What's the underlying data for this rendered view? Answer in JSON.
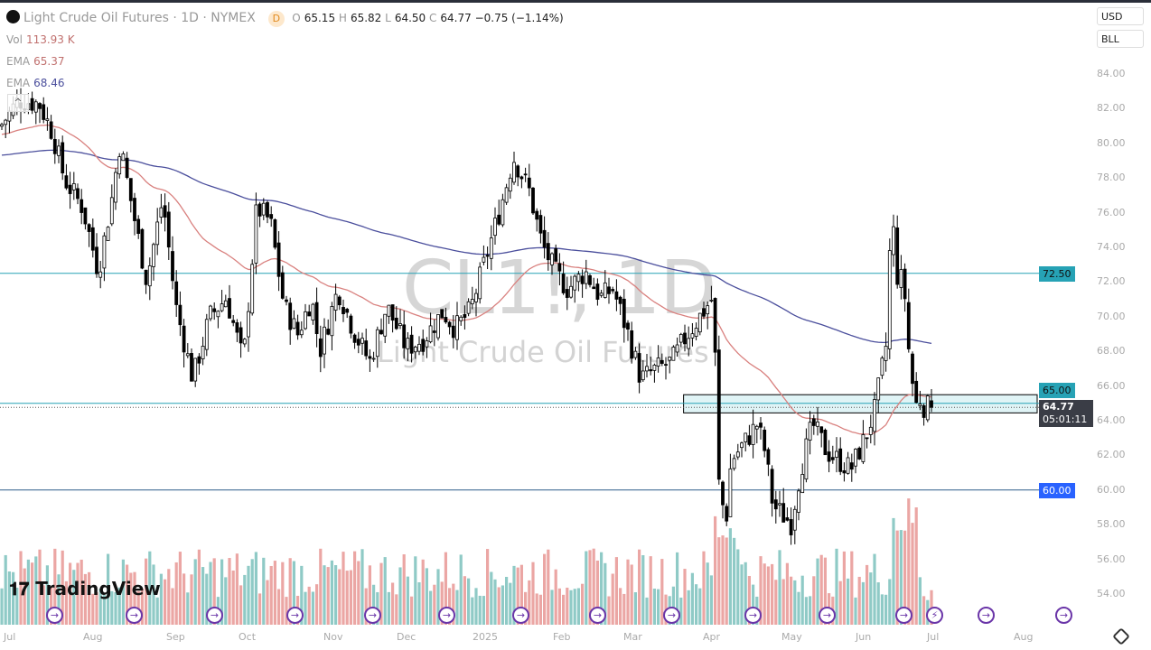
{
  "header": {
    "symbol_name": "Light Crude Oil Futures · 1D · NYMEX",
    "interval_badge": "D",
    "open_label": "O",
    "open": "65.15",
    "high_label": "H",
    "high": "65.82",
    "low_label": "L",
    "low": "64.50",
    "close_label": "C",
    "close": "64.77",
    "change": "−0.75 (−1.14%)"
  },
  "indicators": [
    {
      "label": "Vol",
      "value": "113.93 K",
      "color": "#c0706e"
    },
    {
      "label": "EMA",
      "value": "65.37",
      "color": "#c0706e"
    },
    {
      "label": "EMA",
      "value": "68.46",
      "color": "#4a4e9c"
    }
  ],
  "currency": "USD",
  "unit": "BLL",
  "watermark": {
    "symbol": "CL1!, 1D",
    "name": "Light Crude Oil Futures"
  },
  "price_labels": {
    "level_7250": "72.50",
    "level_6500": "65.00",
    "last_price": "64.77",
    "countdown": "05:01:11",
    "level_6000": "60.00"
  },
  "logo": "TradingView",
  "colors": {
    "up": "#ffffff",
    "down": "#000000",
    "ema_fast": "#d9817f",
    "ema_slow": "#4a4e9c",
    "level_line": "#26a2b5",
    "support_line": "#2962ff",
    "vol_up": "#8fcac6",
    "vol_down": "#eba6a4",
    "zone_fill": "#e0f4f6"
  },
  "chart_data": {
    "type": "candlestick",
    "title": "",
    "ylim": [
      53,
      85
    ],
    "y_ticks": [
      "84.00",
      "82.00",
      "80.00",
      "78.00",
      "76.00",
      "74.00",
      "72.00",
      "70.00",
      "68.00",
      "66.00",
      "64.00",
      "62.00",
      "60.00",
      "58.00",
      "56.00",
      "54.00"
    ],
    "x_ticks": [
      "Jul",
      "Aug",
      "Sep",
      "Oct",
      "Nov",
      "Dec",
      "2025",
      "Feb",
      "Mar",
      "Apr",
      "May",
      "Jun",
      "Jul",
      "Aug"
    ],
    "horizontal_levels": [
      72.5,
      65.0,
      60.0
    ],
    "zone": {
      "from": "2025-03-22",
      "top": 65.5,
      "bottom": 64.45
    },
    "close_path": [
      [
        "2024-06-27",
        81.0
      ],
      [
        "2024-07-04",
        82.5
      ],
      [
        "2024-07-12",
        82.3
      ],
      [
        "2024-07-17",
        80.7
      ],
      [
        "2024-07-22",
        77.9
      ],
      [
        "2024-07-29",
        76.3
      ],
      [
        "2024-08-04",
        72.6
      ],
      [
        "2024-08-09",
        76.8
      ],
      [
        "2024-08-12",
        80.0
      ],
      [
        "2024-08-17",
        76.0
      ],
      [
        "2024-08-22",
        72.1
      ],
      [
        "2024-08-28",
        76.8
      ],
      [
        "2024-09-02",
        70.6
      ],
      [
        "2024-09-09",
        66.4
      ],
      [
        "2024-09-16",
        70.0
      ],
      [
        "2024-09-23",
        71.1
      ],
      [
        "2024-09-30",
        67.4
      ],
      [
        "2024-10-05",
        76.3
      ],
      [
        "2024-10-10",
        75.5
      ],
      [
        "2024-10-15",
        70.6
      ],
      [
        "2024-10-20",
        69.0
      ],
      [
        "2024-10-25",
        71.1
      ],
      [
        "2024-10-28",
        68.0
      ],
      [
        "2024-11-04",
        71.6
      ],
      [
        "2024-11-11",
        69.0
      ],
      [
        "2024-11-17",
        67.4
      ],
      [
        "2024-11-24",
        70.6
      ],
      [
        "2024-12-02",
        68.2
      ],
      [
        "2024-12-09",
        68.7
      ],
      [
        "2024-12-17",
        70.3
      ],
      [
        "2024-12-22",
        69.3
      ],
      [
        "2024-12-28",
        70.3
      ],
      [
        "2025-01-04",
        73.7
      ],
      [
        "2025-01-09",
        76.3
      ],
      [
        "2025-01-14",
        79.2
      ],
      [
        "2025-01-20",
        77.3
      ],
      [
        "2025-01-25",
        74.2
      ],
      [
        "2025-01-30",
        72.6
      ],
      [
        "2025-02-04",
        71.6
      ],
      [
        "2025-02-11",
        72.6
      ],
      [
        "2025-02-17",
        71.1
      ],
      [
        "2025-02-22",
        71.6
      ],
      [
        "2025-02-28",
        69.0
      ],
      [
        "2025-03-05",
        66.4
      ],
      [
        "2025-03-10",
        66.9
      ],
      [
        "2025-03-17",
        67.4
      ],
      [
        "2025-03-22",
        68.7
      ],
      [
        "2025-03-27",
        69.8
      ],
      [
        "2025-04-02",
        71.1
      ],
      [
        "2025-04-03",
        67.4
      ],
      [
        "2025-04-04",
        60.7
      ],
      [
        "2025-04-07",
        58.1
      ],
      [
        "2025-04-09",
        61.7
      ],
      [
        "2025-04-14",
        62.7
      ],
      [
        "2025-04-19",
        63.8
      ],
      [
        "2025-04-22",
        62.2
      ],
      [
        "2025-04-25",
        59.1
      ],
      [
        "2025-05-02",
        58.1
      ],
      [
        "2025-05-06",
        61.2
      ],
      [
        "2025-05-11",
        63.8
      ],
      [
        "2025-05-17",
        62.2
      ],
      [
        "2025-05-22",
        61.7
      ],
      [
        "2025-05-27",
        61.2
      ],
      [
        "2025-06-02",
        63.0
      ],
      [
        "2025-06-06",
        64.6
      ],
      [
        "2025-06-11",
        68.5
      ],
      [
        "2025-06-13",
        76.3
      ],
      [
        "2025-06-16",
        71.6
      ],
      [
        "2025-06-18",
        72.6
      ],
      [
        "2025-06-20",
        68.5
      ],
      [
        "2025-06-23",
        64.8
      ],
      [
        "2025-06-25",
        65.3
      ],
      [
        "2025-06-27",
        64.77
      ]
    ],
    "last": {
      "open": 65.15,
      "high": 65.82,
      "low": 64.5,
      "close": 64.77
    },
    "ema_fast_last": 65.37,
    "ema_slow_last": 68.46
  }
}
